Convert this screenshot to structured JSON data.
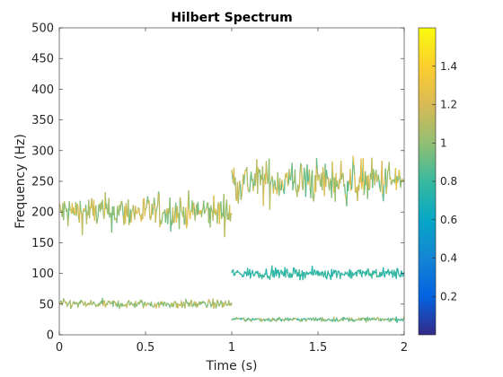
{
  "chart_data": {
    "type": "line",
    "title": "Hilbert Spectrum",
    "xlabel": "Time (s)",
    "ylabel": "Frequency (Hz)",
    "xlim": [
      0,
      2
    ],
    "ylim": [
      0,
      500
    ],
    "x_ticks": [
      0,
      0.5,
      1,
      1.5,
      2
    ],
    "x_tick_labels": [
      "0",
      "0.5",
      "1",
      "1.5",
      "2"
    ],
    "y_ticks": [
      0,
      50,
      100,
      150,
      200,
      250,
      300,
      350,
      400,
      450,
      500
    ],
    "y_tick_labels": [
      "0",
      "50",
      "100",
      "150",
      "200",
      "250",
      "300",
      "350",
      "400",
      "450",
      "500"
    ],
    "grid": false,
    "colorbar": {
      "colormap": "parula",
      "range": [
        0,
        1.6
      ],
      "ticks": [
        0.2,
        0.4,
        0.6,
        0.8,
        1,
        1.2,
        1.4
      ],
      "tick_labels": [
        "0.2",
        "0.4",
        "0.6",
        "0.8",
        "1",
        "1.2",
        "1.4"
      ]
    },
    "series": [
      {
        "segments": [
          {
            "x_range": [
              0,
              1
            ],
            "center": 200,
            "noise": 20,
            "amplitude": [
              0.9,
              1.3
            ]
          },
          {
            "x_range": [
              1,
              2
            ],
            "center": 250,
            "noise": 25,
            "amplitude": [
              0.85,
              1.3
            ]
          }
        ]
      },
      {
        "segments": [
          {
            "x_range": [
              0,
              1
            ],
            "center": 50,
            "noise": 5,
            "amplitude": [
              0.9,
              1.2
            ]
          },
          {
            "x_range": [
              1,
              2
            ],
            "center": 100,
            "noise": 6,
            "amplitude": [
              0.7,
              0.85
            ]
          }
        ]
      },
      {
        "segments": [
          {
            "x_range": [
              1,
              2
            ],
            "center": 25,
            "noise": 2.5,
            "amplitude": [
              0.75,
              1.15
            ]
          }
        ]
      }
    ]
  }
}
